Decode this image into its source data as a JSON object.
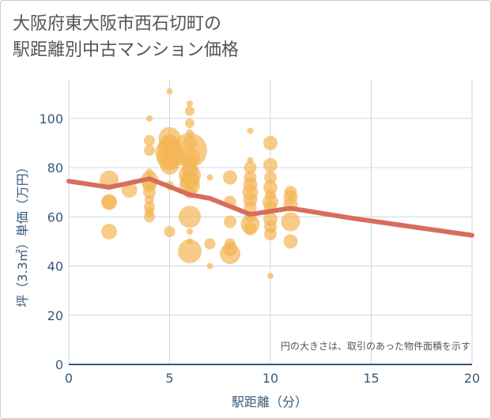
{
  "title": {
    "line1": "大阪府東大阪市西石切町の",
    "line2": "駅距離別中古マンション価格"
  },
  "chart_data": {
    "type": "scatter",
    "title": "大阪府東大阪市西石切町の駅距離別中古マンション価格",
    "xlabel": "駅距離（分）",
    "ylabel": "坪（3.3㎡）単価（万円）",
    "xlim": [
      0,
      20
    ],
    "ylim": [
      0,
      116
    ],
    "xticks": [
      0,
      5,
      10,
      15,
      20
    ],
    "yticks": [
      0,
      20,
      40,
      60,
      80,
      100
    ],
    "grid": true,
    "annotation": "円の大きさは、取引のあった物件面積を示す",
    "colors": {
      "bubble": "#f4b555",
      "line": "#d66e5b",
      "axis": "#3a5a78",
      "grid": "#ccd9e6"
    },
    "series": [
      {
        "type": "scatter",
        "points": [
          {
            "x": 2,
            "y": 75,
            "s": 12
          },
          {
            "x": 2,
            "y": 66,
            "s": 10
          },
          {
            "x": 2,
            "y": 66,
            "s": 9
          },
          {
            "x": 2,
            "y": 54,
            "s": 10
          },
          {
            "x": 3,
            "y": 71,
            "s": 10
          },
          {
            "x": 4,
            "y": 100,
            "s": 4
          },
          {
            "x": 4,
            "y": 91,
            "s": 7
          },
          {
            "x": 4,
            "y": 87,
            "s": 7
          },
          {
            "x": 4,
            "y": 78,
            "s": 5
          },
          {
            "x": 4,
            "y": 75,
            "s": 11
          },
          {
            "x": 4,
            "y": 73,
            "s": 9
          },
          {
            "x": 4,
            "y": 70,
            "s": 8
          },
          {
            "x": 4,
            "y": 67,
            "s": 6
          },
          {
            "x": 4,
            "y": 64,
            "s": 7
          },
          {
            "x": 4,
            "y": 62,
            "s": 6
          },
          {
            "x": 4,
            "y": 60,
            "s": 7
          },
          {
            "x": 5,
            "y": 111,
            "s": 4
          },
          {
            "x": 5,
            "y": 92,
            "s": 14
          },
          {
            "x": 5,
            "y": 90,
            "s": 11
          },
          {
            "x": 5,
            "y": 88,
            "s": 15
          },
          {
            "x": 5,
            "y": 86,
            "s": 18
          },
          {
            "x": 5,
            "y": 84,
            "s": 16
          },
          {
            "x": 5,
            "y": 81,
            "s": 12
          },
          {
            "x": 5,
            "y": 73,
            "s": 5
          },
          {
            "x": 5,
            "y": 72,
            "s": 4
          },
          {
            "x": 5,
            "y": 54,
            "s": 7
          },
          {
            "x": 6,
            "y": 106,
            "s": 4
          },
          {
            "x": 6,
            "y": 103,
            "s": 6
          },
          {
            "x": 6,
            "y": 98,
            "s": 6
          },
          {
            "x": 6,
            "y": 94,
            "s": 5
          },
          {
            "x": 6,
            "y": 90,
            "s": 9
          },
          {
            "x": 6,
            "y": 87,
            "s": 22
          },
          {
            "x": 6,
            "y": 84,
            "s": 13
          },
          {
            "x": 6,
            "y": 82,
            "s": 9
          },
          {
            "x": 6,
            "y": 79,
            "s": 10
          },
          {
            "x": 6,
            "y": 77,
            "s": 14
          },
          {
            "x": 6,
            "y": 75,
            "s": 12
          },
          {
            "x": 6,
            "y": 73,
            "s": 13
          },
          {
            "x": 6,
            "y": 70,
            "s": 8
          },
          {
            "x": 6,
            "y": 60,
            "s": 14
          },
          {
            "x": 6,
            "y": 54,
            "s": 4
          },
          {
            "x": 6,
            "y": 50,
            "s": 4
          },
          {
            "x": 6,
            "y": 46,
            "s": 15
          },
          {
            "x": 7,
            "y": 76,
            "s": 4
          },
          {
            "x": 7,
            "y": 49,
            "s": 7
          },
          {
            "x": 7,
            "y": 40,
            "s": 4
          },
          {
            "x": 8,
            "y": 76,
            "s": 9
          },
          {
            "x": 8,
            "y": 66,
            "s": 8
          },
          {
            "x": 8,
            "y": 58,
            "s": 8
          },
          {
            "x": 8,
            "y": 49,
            "s": 7
          },
          {
            "x": 8,
            "y": 47,
            "s": 9
          },
          {
            "x": 8,
            "y": 45,
            "s": 13
          },
          {
            "x": 9,
            "y": 95,
            "s": 4
          },
          {
            "x": 9,
            "y": 83,
            "s": 4
          },
          {
            "x": 9,
            "y": 80,
            "s": 8
          },
          {
            "x": 9,
            "y": 76,
            "s": 8
          },
          {
            "x": 9,
            "y": 73,
            "s": 9
          },
          {
            "x": 9,
            "y": 70,
            "s": 10
          },
          {
            "x": 9,
            "y": 67,
            "s": 9
          },
          {
            "x": 9,
            "y": 64,
            "s": 8
          },
          {
            "x": 9,
            "y": 60,
            "s": 7
          },
          {
            "x": 9,
            "y": 57,
            "s": 12
          },
          {
            "x": 9,
            "y": 55,
            "s": 8
          },
          {
            "x": 10,
            "y": 90,
            "s": 9
          },
          {
            "x": 10,
            "y": 81,
            "s": 9
          },
          {
            "x": 10,
            "y": 76,
            "s": 8
          },
          {
            "x": 10,
            "y": 72,
            "s": 9
          },
          {
            "x": 10,
            "y": 69,
            "s": 7
          },
          {
            "x": 10,
            "y": 66,
            "s": 10
          },
          {
            "x": 10,
            "y": 64,
            "s": 8
          },
          {
            "x": 10,
            "y": 59,
            "s": 9
          },
          {
            "x": 10,
            "y": 56,
            "s": 8
          },
          {
            "x": 10,
            "y": 53,
            "s": 8
          },
          {
            "x": 10,
            "y": 36,
            "s": 4
          },
          {
            "x": 11,
            "y": 70,
            "s": 8
          },
          {
            "x": 11,
            "y": 68,
            "s": 9
          },
          {
            "x": 11,
            "y": 65,
            "s": 9
          },
          {
            "x": 11,
            "y": 58,
            "s": 12
          },
          {
            "x": 11,
            "y": 50,
            "s": 9
          }
        ]
      },
      {
        "type": "line",
        "x": [
          0,
          2,
          4,
          6,
          7,
          9,
          11,
          14,
          20
        ],
        "y": [
          74.5,
          72,
          75.5,
          69,
          67.5,
          61,
          63.5,
          59.5,
          52.5
        ]
      }
    ]
  }
}
